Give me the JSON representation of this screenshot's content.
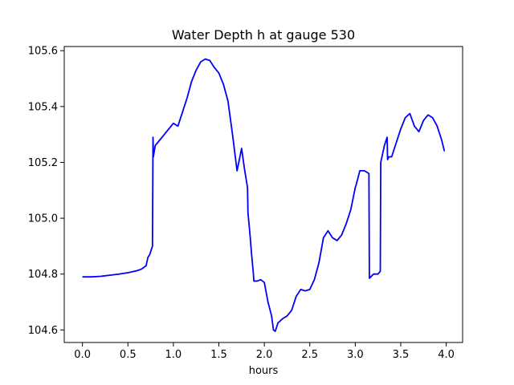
{
  "chart_data": {
    "type": "line",
    "title": "Water Depth h at gauge 530",
    "xlabel": "hours",
    "ylabel": "",
    "xlim": [
      -0.2,
      4.18
    ],
    "ylim": [
      104.555,
      105.615
    ],
    "grid": false,
    "xticks": [
      0.0,
      0.5,
      1.0,
      1.5,
      2.0,
      2.5,
      3.0,
      3.5,
      4.0
    ],
    "xtick_labels": [
      "0.0",
      "0.5",
      "1.0",
      "1.5",
      "2.0",
      "2.5",
      "3.0",
      "3.5",
      "4.0"
    ],
    "yticks": [
      104.6,
      104.8,
      105.0,
      105.2,
      105.4,
      105.6
    ],
    "ytick_labels": [
      "104.6",
      "104.8",
      "105.0",
      "105.2",
      "105.4",
      "105.6"
    ],
    "colors": {
      "series": "#0000ff"
    },
    "series": [
      {
        "x": [
          0.0,
          0.1,
          0.2,
          0.3,
          0.4,
          0.5,
          0.6,
          0.65,
          0.7,
          0.72,
          0.74,
          0.77,
          0.776,
          0.78,
          0.785,
          0.8,
          0.85,
          0.9,
          0.95,
          1.0,
          1.05,
          1.1,
          1.15,
          1.2,
          1.25,
          1.3,
          1.35,
          1.4,
          1.45,
          1.5,
          1.55,
          1.6,
          1.65,
          1.7,
          1.75,
          1.78,
          1.8,
          1.815,
          1.82,
          1.84,
          1.86,
          1.88,
          1.885,
          1.92,
          1.96,
          2.0,
          2.04,
          2.08,
          2.1,
          2.12,
          2.15,
          2.2,
          2.25,
          2.3,
          2.35,
          2.4,
          2.45,
          2.5,
          2.55,
          2.6,
          2.65,
          2.7,
          2.75,
          2.8,
          2.85,
          2.9,
          2.95,
          3.0,
          3.01,
          3.05,
          3.1,
          3.15,
          3.155,
          3.17,
          3.2,
          3.25,
          3.275,
          3.28,
          3.3,
          3.32,
          3.35,
          3.355,
          3.37,
          3.4,
          3.45,
          3.5,
          3.55,
          3.6,
          3.65,
          3.7,
          3.75,
          3.8,
          3.85,
          3.9,
          3.95,
          3.98
        ],
        "y": [
          104.79,
          104.79,
          104.792,
          104.796,
          104.8,
          104.805,
          104.812,
          104.818,
          104.83,
          104.86,
          104.87,
          104.9,
          105.29,
          105.22,
          105.23,
          105.26,
          105.28,
          105.3,
          105.32,
          105.34,
          105.33,
          105.38,
          105.43,
          105.49,
          105.53,
          105.56,
          105.57,
          105.565,
          105.54,
          105.52,
          105.48,
          105.42,
          105.3,
          105.17,
          105.25,
          105.18,
          105.14,
          105.11,
          105.02,
          104.95,
          104.87,
          104.8,
          104.775,
          104.775,
          104.78,
          104.77,
          104.7,
          104.65,
          104.6,
          104.595,
          104.625,
          104.64,
          104.65,
          104.67,
          104.72,
          104.745,
          104.74,
          104.745,
          104.78,
          104.84,
          104.93,
          104.955,
          104.93,
          104.92,
          104.94,
          104.98,
          105.03,
          105.11,
          105.12,
          105.17,
          105.17,
          105.16,
          104.785,
          104.79,
          104.8,
          104.8,
          104.81,
          105.2,
          105.23,
          105.26,
          105.29,
          105.21,
          105.22,
          105.22,
          105.27,
          105.32,
          105.36,
          105.375,
          105.33,
          105.31,
          105.35,
          105.37,
          105.36,
          105.33,
          105.28,
          105.24
        ]
      }
    ]
  }
}
